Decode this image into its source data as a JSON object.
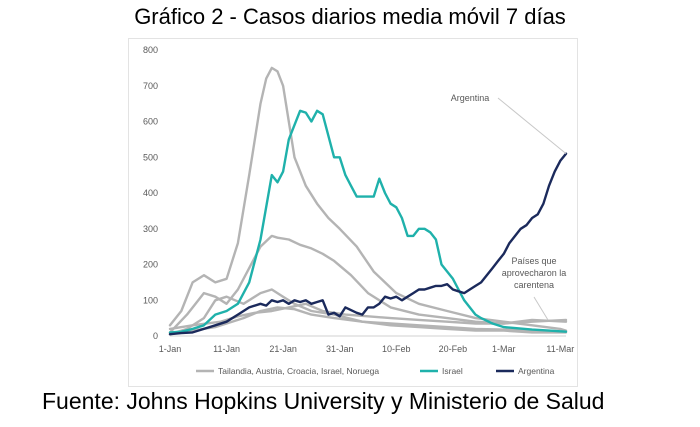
{
  "title": "Gráfico 2 - Casos diarios media móvil 7 días",
  "source": "Fuente: Johns Hopkins University y Ministerio de Salud",
  "chart_data": {
    "type": "line",
    "title": "Gráfico 2 - Casos diarios media móvil 7 días",
    "xlabel": "",
    "ylabel": "",
    "x_range": [
      1,
      71
    ],
    "ylim": [
      0,
      800
    ],
    "y_ticks": [
      0,
      100,
      200,
      300,
      400,
      500,
      600,
      700,
      800
    ],
    "x_ticks": [
      {
        "day": 1,
        "label": "1-Jan"
      },
      {
        "day": 11,
        "label": "11-Jan"
      },
      {
        "day": 21,
        "label": "21-Jan"
      },
      {
        "day": 31,
        "label": "31-Jan"
      },
      {
        "day": 41,
        "label": "10-Feb"
      },
      {
        "day": 51,
        "label": "20-Feb"
      },
      {
        "day": 60,
        "label": "1-Mar"
      },
      {
        "day": 70,
        "label": "11-Mar"
      }
    ],
    "grid": false,
    "legend_position": "bottom",
    "legend": [
      {
        "label": "Tailandia, Austria, Croacia, Israel, Noruega",
        "color": "#b4b4b4"
      },
      {
        "label": "Israel",
        "color": "#1fb1ab"
      },
      {
        "label": "Argentina",
        "color": "#1b2a5c"
      }
    ],
    "annotations": [
      {
        "text": "Argentina",
        "points_to": "Argentina"
      },
      {
        "text_lines": [
          "Países que",
          "aprovecharon la",
          "carentena"
        ]
      }
    ],
    "series": [
      {
        "color": "#b4b4b4",
        "group": "others",
        "x": [
          1,
          3,
          5,
          7,
          9,
          11,
          13,
          15,
          17,
          18,
          19,
          20,
          21,
          22,
          23,
          25,
          27,
          29,
          31,
          34,
          37,
          41,
          45,
          50,
          55,
          60,
          65,
          70,
          71
        ],
        "y": [
          30,
          70,
          150,
          170,
          150,
          160,
          260,
          450,
          650,
          720,
          750,
          740,
          700,
          600,
          500,
          420,
          370,
          330,
          300,
          250,
          180,
          120,
          90,
          70,
          50,
          40,
          30,
          20,
          15
        ]
      },
      {
        "color": "#b4b4b4",
        "group": "others",
        "x": [
          1,
          4,
          7,
          9,
          11,
          13,
          15,
          17,
          19,
          20,
          22,
          24,
          26,
          28,
          30,
          33,
          36,
          40,
          45,
          50,
          55,
          60,
          65,
          71
        ],
        "y": [
          10,
          60,
          120,
          110,
          90,
          130,
          190,
          250,
          280,
          275,
          270,
          255,
          245,
          230,
          210,
          170,
          120,
          80,
          60,
          50,
          40,
          35,
          45,
          40
        ]
      },
      {
        "color": "#b4b4b4",
        "group": "others",
        "x": [
          1,
          4,
          7,
          9,
          11,
          14,
          17,
          19,
          21,
          23,
          26,
          30,
          35,
          40,
          45,
          50,
          55,
          60,
          65,
          71
        ],
        "y": [
          5,
          20,
          50,
          100,
          110,
          90,
          120,
          130,
          110,
          90,
          70,
          60,
          40,
          30,
          25,
          20,
          15,
          15,
          10,
          10
        ]
      },
      {
        "color": "#b4b4b4",
        "group": "others",
        "x": [
          1,
          5,
          9,
          11,
          14,
          17,
          20,
          23,
          26,
          30,
          35,
          40,
          45,
          50,
          55,
          60,
          65,
          71
        ],
        "y": [
          5,
          15,
          25,
          35,
          50,
          70,
          80,
          75,
          60,
          50,
          40,
          35,
          30,
          25,
          20,
          18,
          15,
          12
        ]
      },
      {
        "color": "#b4b4b4",
        "group": "others",
        "x": [
          1,
          5,
          10,
          13,
          16,
          19,
          22,
          25,
          28,
          32,
          36,
          40,
          45,
          50,
          55,
          60,
          65,
          71
        ],
        "y": [
          20,
          30,
          40,
          55,
          65,
          70,
          80,
          90,
          70,
          60,
          55,
          50,
          45,
          40,
          35,
          35,
          40,
          45
        ]
      },
      {
        "name": "Israel",
        "color": "#1fb1ab",
        "x": [
          1,
          3,
          5,
          7,
          9,
          11,
          13,
          15,
          17,
          19,
          20,
          21,
          22,
          24,
          25,
          26,
          27,
          28,
          29,
          30,
          31,
          32,
          33,
          34,
          35,
          37,
          38,
          39,
          40,
          41,
          42,
          43,
          44,
          45,
          46,
          47,
          48,
          49,
          50,
          51,
          52,
          53,
          54,
          55,
          56,
          58,
          60,
          62,
          65,
          68,
          71
        ],
        "y": [
          10,
          12,
          20,
          30,
          60,
          70,
          90,
          150,
          270,
          450,
          430,
          460,
          550,
          630,
          625,
          600,
          630,
          620,
          560,
          500,
          500,
          450,
          420,
          390,
          390,
          390,
          440,
          400,
          370,
          360,
          330,
          280,
          280,
          300,
          300,
          290,
          270,
          200,
          180,
          160,
          130,
          100,
          80,
          60,
          50,
          35,
          25,
          22,
          18,
          15,
          12
        ]
      },
      {
        "name": "Argentina",
        "color": "#1b2a5c",
        "x": [
          1,
          3,
          5,
          7,
          9,
          11,
          13,
          15,
          17,
          18,
          19,
          20,
          21,
          22,
          23,
          24,
          25,
          26,
          27,
          28,
          29,
          30,
          31,
          32,
          34,
          35,
          36,
          37,
          38,
          39,
          40,
          41,
          42,
          43,
          44,
          45,
          46,
          47,
          48,
          49,
          50,
          51,
          52,
          53,
          54,
          55,
          56,
          57,
          58,
          59,
          60,
          61,
          62,
          63,
          64,
          65,
          66,
          67,
          68,
          69,
          70,
          71
        ],
        "y": [
          5,
          8,
          10,
          20,
          30,
          40,
          60,
          80,
          90,
          85,
          100,
          95,
          100,
          90,
          100,
          95,
          100,
          90,
          95,
          100,
          60,
          65,
          55,
          80,
          65,
          60,
          80,
          80,
          90,
          110,
          105,
          110,
          100,
          110,
          120,
          130,
          130,
          135,
          140,
          140,
          145,
          130,
          125,
          120,
          130,
          140,
          150,
          170,
          190,
          210,
          230,
          260,
          280,
          300,
          310,
          330,
          340,
          370,
          420,
          460,
          490,
          510
        ]
      }
    ]
  }
}
